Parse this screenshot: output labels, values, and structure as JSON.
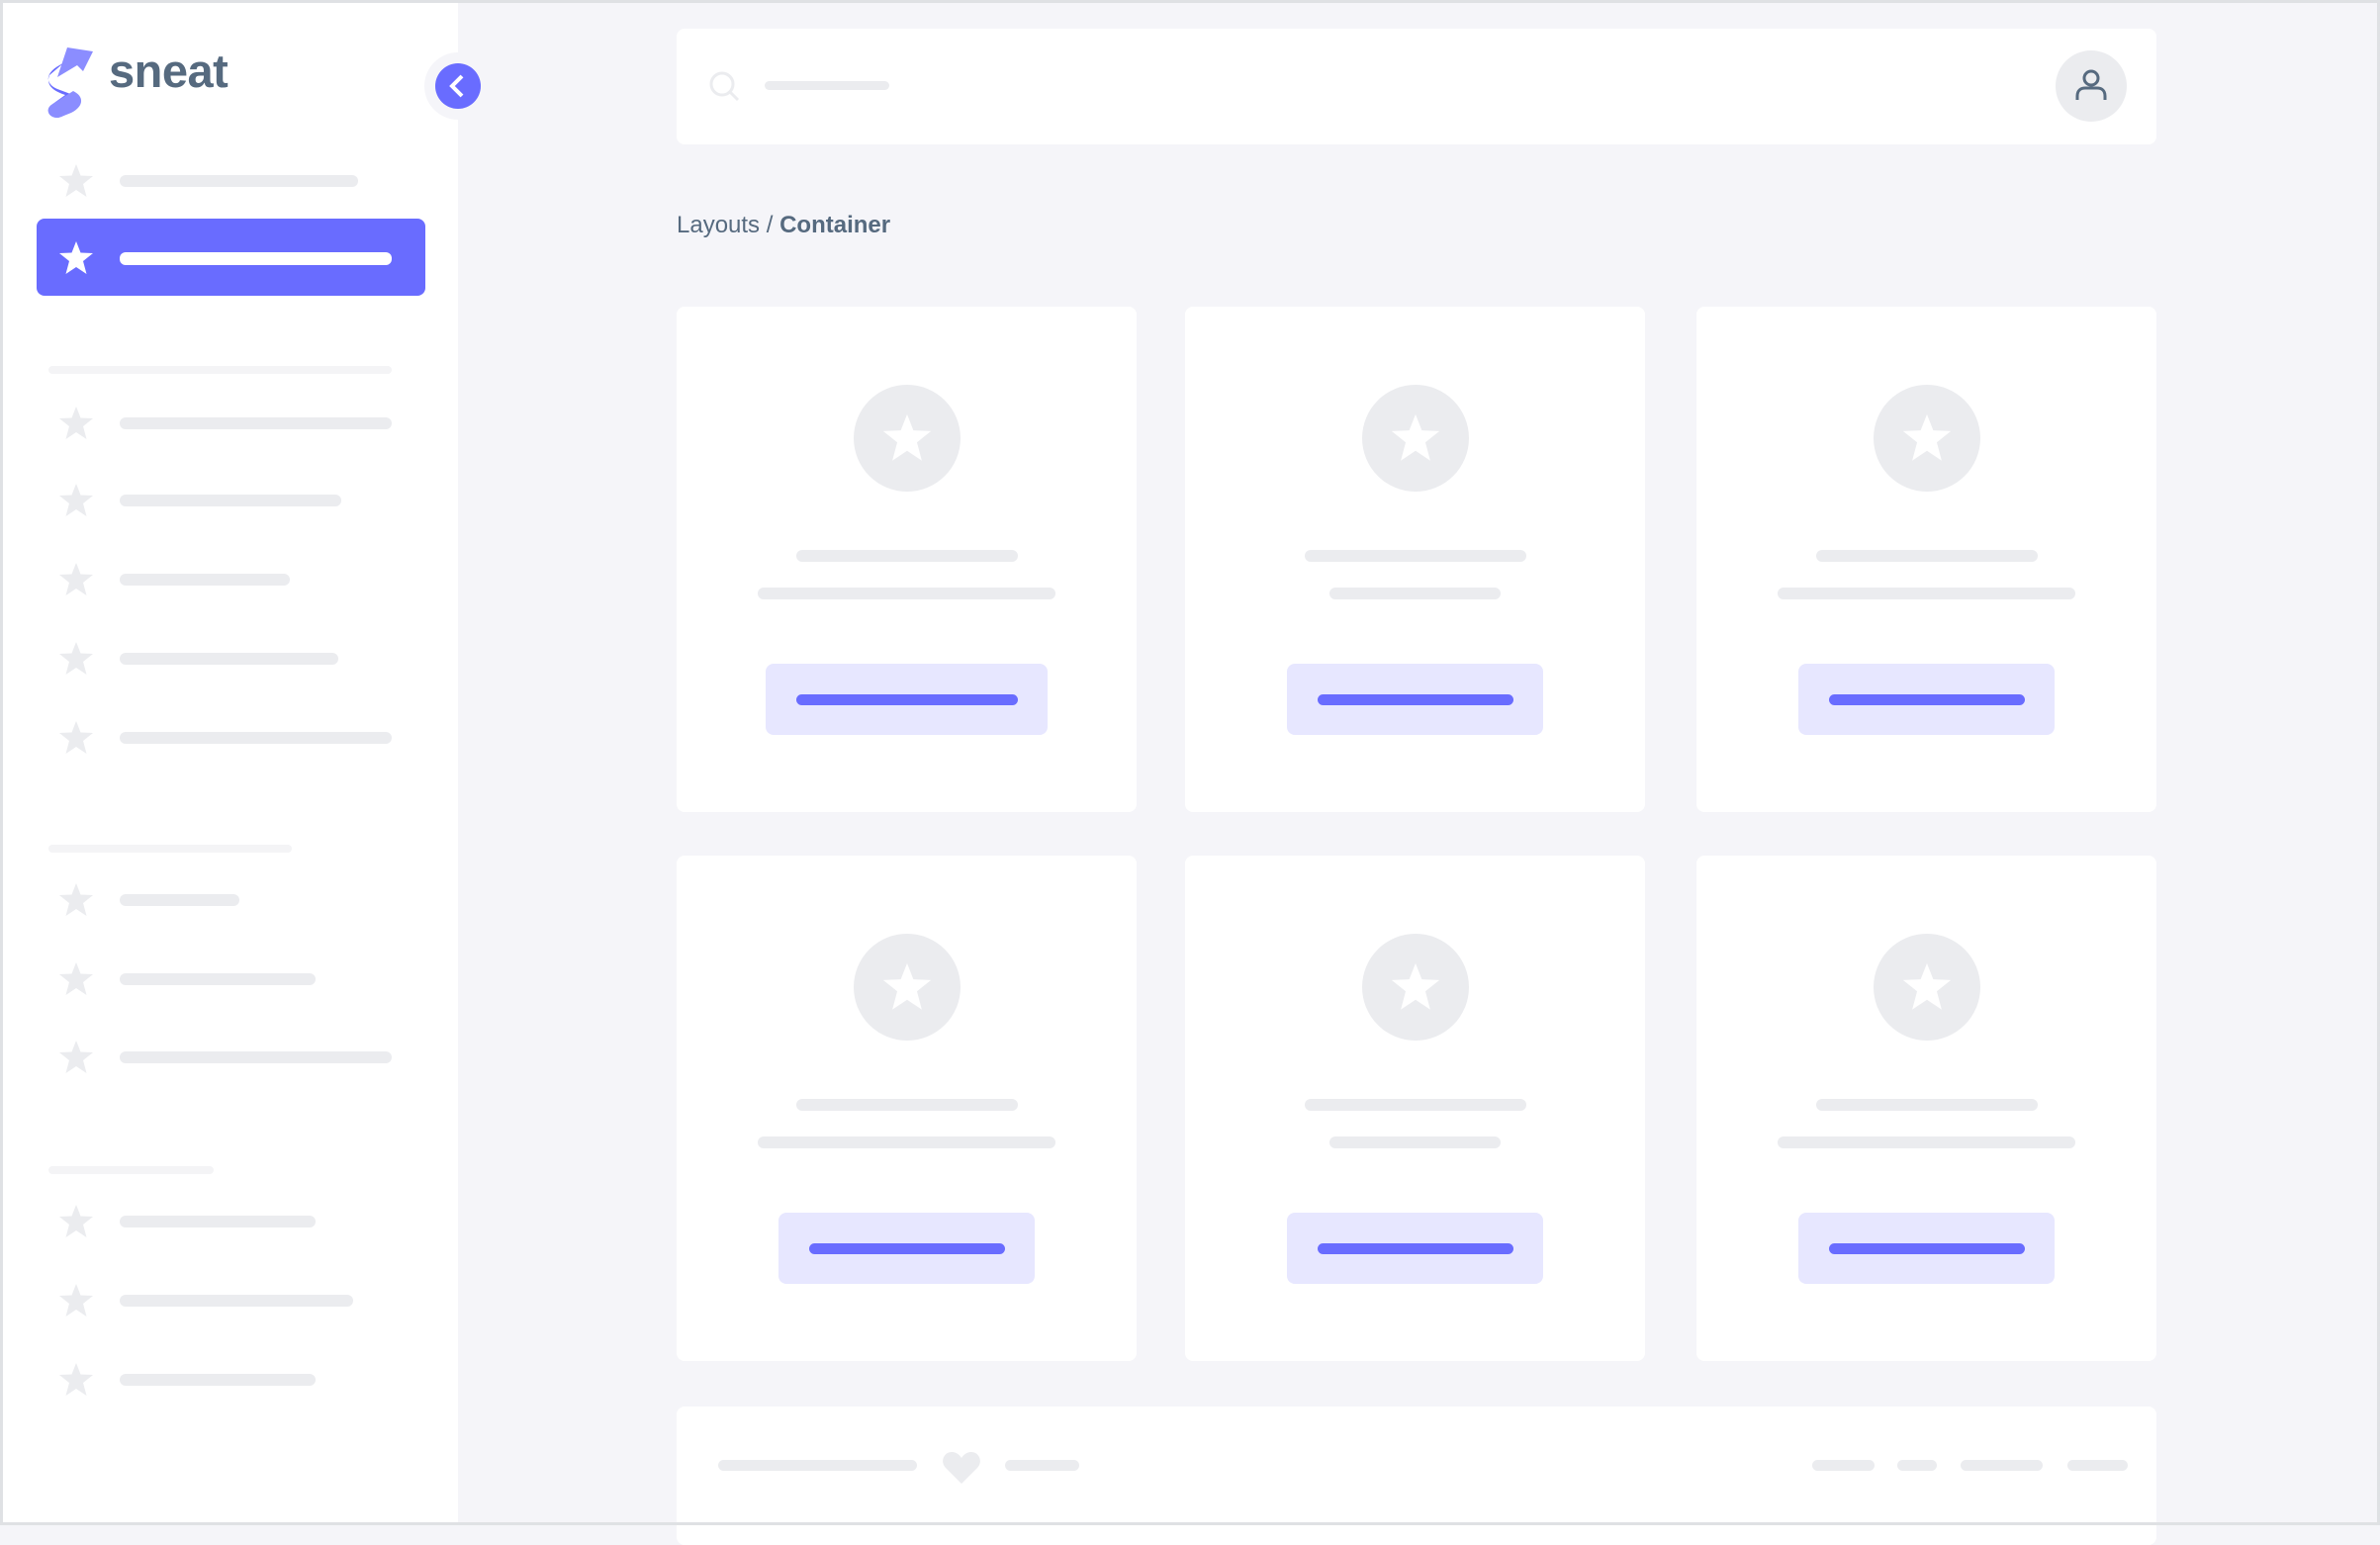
{
  "brand": {
    "name": "sneat",
    "logo_icon": "sneat-logo"
  },
  "sidebar": {
    "collapse_icon": "chevron-left-icon",
    "item_icon": "star-icon",
    "active_index": 1
  },
  "search": {
    "icon": "search-icon"
  },
  "user": {
    "icon": "user-icon"
  },
  "breadcrumb": {
    "parent": "Layouts",
    "separator": " / ",
    "current": "Container"
  },
  "footer": {
    "icon": "heart-icon"
  },
  "colors": {
    "primary": "#696cff",
    "primary_light": "#e7e7ff",
    "skeleton": "#ebecef",
    "background": "#f5f5f9",
    "text": "#566a7f"
  }
}
